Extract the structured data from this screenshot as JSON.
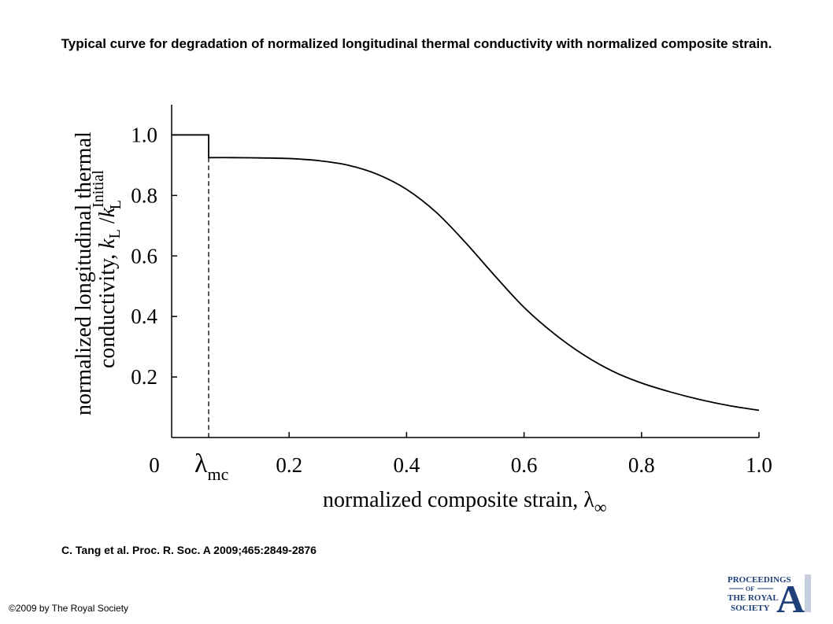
{
  "header": {
    "title": "Typical curve for degradation of normalized longitudinal thermal conductivity with normalized composite strain."
  },
  "chart_data": {
    "type": "line",
    "xlabel_text": "normalized composite strain, ",
    "xlabel_symbol": "λ",
    "xlabel_subscript": "∞",
    "ylabel_line1": "normalized longitudinal thermal",
    "ylabel_line2_text": "conductivity, ",
    "ylabel_k": "k",
    "ylabel_sub_L": "L",
    "ylabel_slash": " /",
    "ylabel_sup_initial": "Initial",
    "x_tick_labels": [
      "0",
      "0.2",
      "0.4",
      "0.6",
      "0.8",
      "1.0"
    ],
    "x_ticks": [
      0,
      0.2,
      0.4,
      0.6,
      0.8,
      1.0
    ],
    "y_tick_labels": [
      "0.2",
      "0.4",
      "0.6",
      "0.8",
      "1.0"
    ],
    "y_ticks": [
      0.2,
      0.4,
      0.6,
      0.8,
      1.0
    ],
    "xlim": [
      0,
      1.0
    ],
    "ylim": [
      0,
      1.1
    ],
    "marker": {
      "symbol": "λ",
      "subscript": "mc",
      "x": 0.063
    },
    "grid": false,
    "series": [
      {
        "points": [
          [
            0,
            1.0
          ],
          [
            0.063,
            1.0
          ],
          [
            0.063,
            0.925
          ],
          [
            0.1,
            0.925
          ],
          [
            0.15,
            0.924
          ],
          [
            0.2,
            0.922
          ],
          [
            0.25,
            0.915
          ],
          [
            0.3,
            0.9
          ],
          [
            0.35,
            0.87
          ],
          [
            0.4,
            0.82
          ],
          [
            0.45,
            0.745
          ],
          [
            0.5,
            0.645
          ],
          [
            0.55,
            0.535
          ],
          [
            0.6,
            0.43
          ],
          [
            0.65,
            0.345
          ],
          [
            0.7,
            0.275
          ],
          [
            0.75,
            0.22
          ],
          [
            0.8,
            0.18
          ],
          [
            0.85,
            0.15
          ],
          [
            0.9,
            0.125
          ],
          [
            0.95,
            0.105
          ],
          [
            1.0,
            0.09
          ]
        ]
      }
    ]
  },
  "footer": {
    "citation": "C. Tang et al. Proc. R. Soc. A 2009;465:2849-2876",
    "copyright": "©2009 by The Royal Society"
  },
  "logo": {
    "line1": "PROCEEDINGS",
    "line2": "OF",
    "line3": "THE ROYAL",
    "line4": "SOCIETY",
    "letter": "A",
    "color": "#1f3f7a"
  }
}
